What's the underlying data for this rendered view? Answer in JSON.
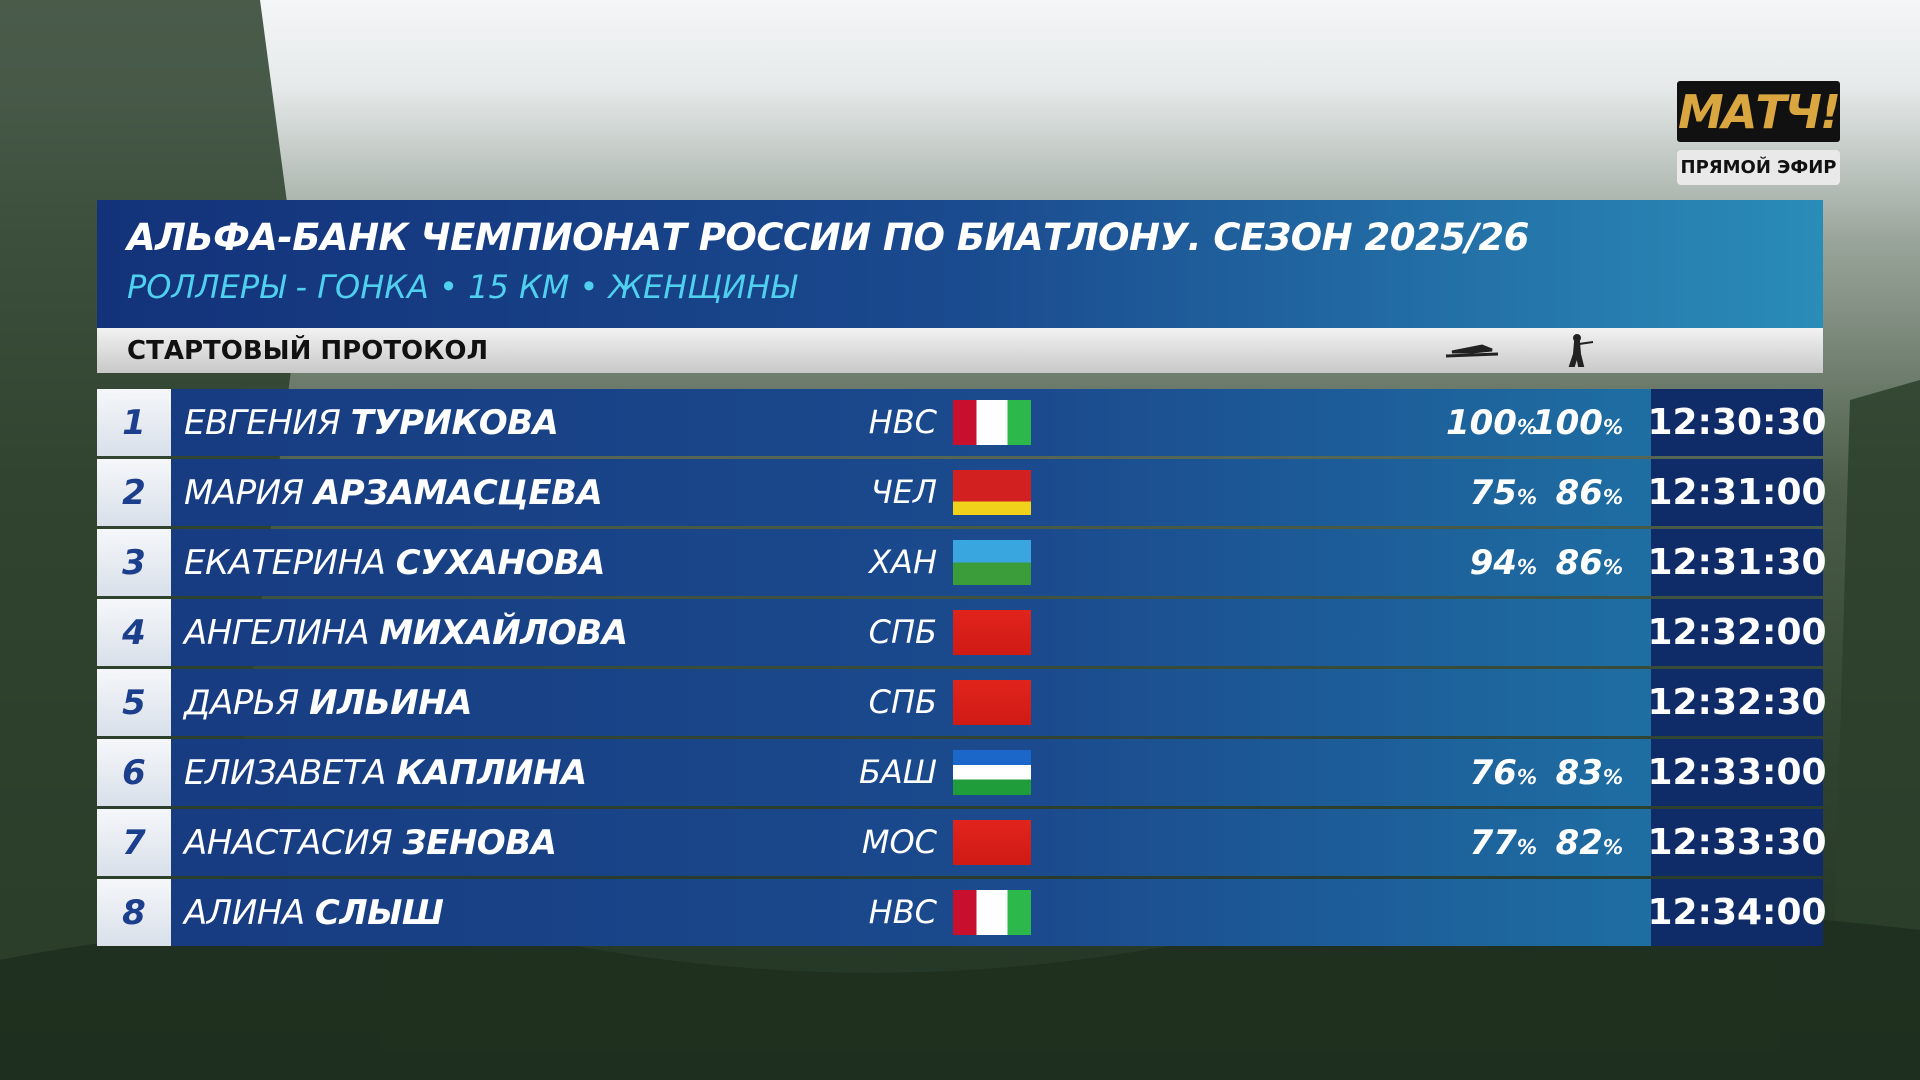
{
  "logo": "МАТЧ!",
  "live": "ПРЯМОЙ ЭФИР",
  "header": {
    "title": "АЛЬФА-БАНК ЧЕМПИОНАТ РОССИИ ПО БИАТЛОНУ. СЕЗОН 2025/26",
    "subtitle": "РОЛЛЕРЫ - ГОНКА • 15 КМ • ЖЕНЩИНЫ",
    "section": "СТАРТОВЫЙ ПРОТОКОЛ"
  },
  "rows": [
    {
      "rank": 1,
      "first": "ЕВГЕНИЯ",
      "last": "ТУРИКОВА",
      "region": "НВС",
      "ski": {
        "value": "100",
        "unit": "%"
      },
      "shoot": {
        "value": "100",
        "unit": "%"
      },
      "time": "12:30:30"
    },
    {
      "rank": 2,
      "first": "МАРИЯ",
      "last": "АРЗАМАСЦЕВА",
      "region": "ЧЕЛ",
      "ski": {
        "value": "75",
        "unit": "%"
      },
      "shoot": {
        "value": "86",
        "unit": "%"
      },
      "time": "12:31:00"
    },
    {
      "rank": 3,
      "first": "ЕКАТЕРИНА",
      "last": "СУХАНОВА",
      "region": "ХАН",
      "ski": {
        "value": "94",
        "unit": "%"
      },
      "shoot": {
        "value": "86",
        "unit": "%"
      },
      "time": "12:31:30"
    },
    {
      "rank": 4,
      "first": "АНГЕЛИНА",
      "last": "МИХАЙЛОВА",
      "region": "СПБ",
      "time": "12:32:00"
    },
    {
      "rank": 5,
      "first": "ДАРЬЯ",
      "last": "ИЛЬИНА",
      "region": "СПБ",
      "time": "12:32:30"
    },
    {
      "rank": 6,
      "first": "ЕЛИЗАВЕТА",
      "last": "КАПЛИНА",
      "region": "БАШ",
      "ski": {
        "value": "76",
        "unit": "%"
      },
      "shoot": {
        "value": "83",
        "unit": "%"
      },
      "time": "12:33:00"
    },
    {
      "rank": 7,
      "first": "АНАСТАСИЯ",
      "last": "ЗЕНОВА",
      "region": "МОС",
      "ski": {
        "value": "77",
        "unit": "%"
      },
      "shoot": {
        "value": "82",
        "unit": "%"
      },
      "time": "12:33:30"
    },
    {
      "rank": 8,
      "first": "АЛИНА",
      "last": "СЛЫШ",
      "region": "НВС",
      "time": "12:34:00"
    }
  ]
}
